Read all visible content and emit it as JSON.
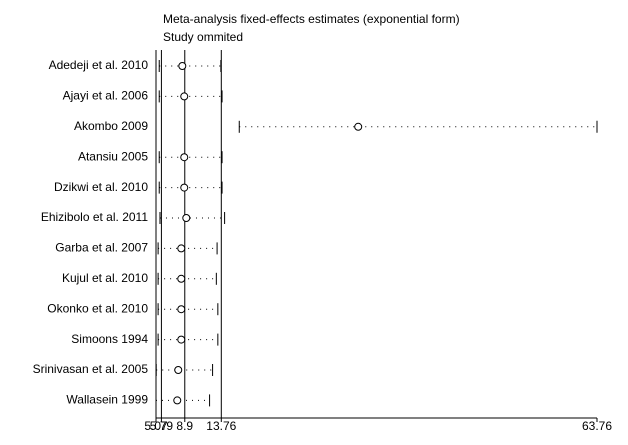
{
  "chart_data": {
    "type": "influence",
    "title": "Meta-analysis fixed-effects estimates (exponential form)",
    "subtitle": "Study ommited",
    "categories": [
      "Adedeji et al. 2010",
      "Ajayi et al. 2006",
      "Akombo 2009",
      "Atansiu 2005",
      "Dzikwi et al. 2010",
      "Ehizibolo et al. 2011",
      "Garba et al. 2007",
      "Kujul et al. 2010",
      "Okonko et al. 2010",
      "Simoons 1994",
      "Srinivasan et al. 2005",
      "Wallasein 1999"
    ],
    "estimate": [
      8.57,
      8.83,
      31.98,
      8.83,
      8.83,
      9.1,
      8.43,
      8.43,
      8.43,
      8.43,
      8.03,
      7.9
    ],
    "lower": [
      5.5,
      5.5,
      16.15,
      5.5,
      5.5,
      5.6,
      5.35,
      5.35,
      5.35,
      5.35,
      5.1,
      5.07
    ],
    "upper": [
      13.7,
      13.86,
      63.76,
      13.86,
      13.86,
      14.2,
      13.2,
      13.1,
      13.3,
      13.3,
      12.6,
      12.2
    ],
    "xlim": [
      5.07,
      63.76
    ],
    "xticks": [
      5.07,
      5.79,
      8.9,
      13.76,
      63.76
    ],
    "grid": true
  }
}
